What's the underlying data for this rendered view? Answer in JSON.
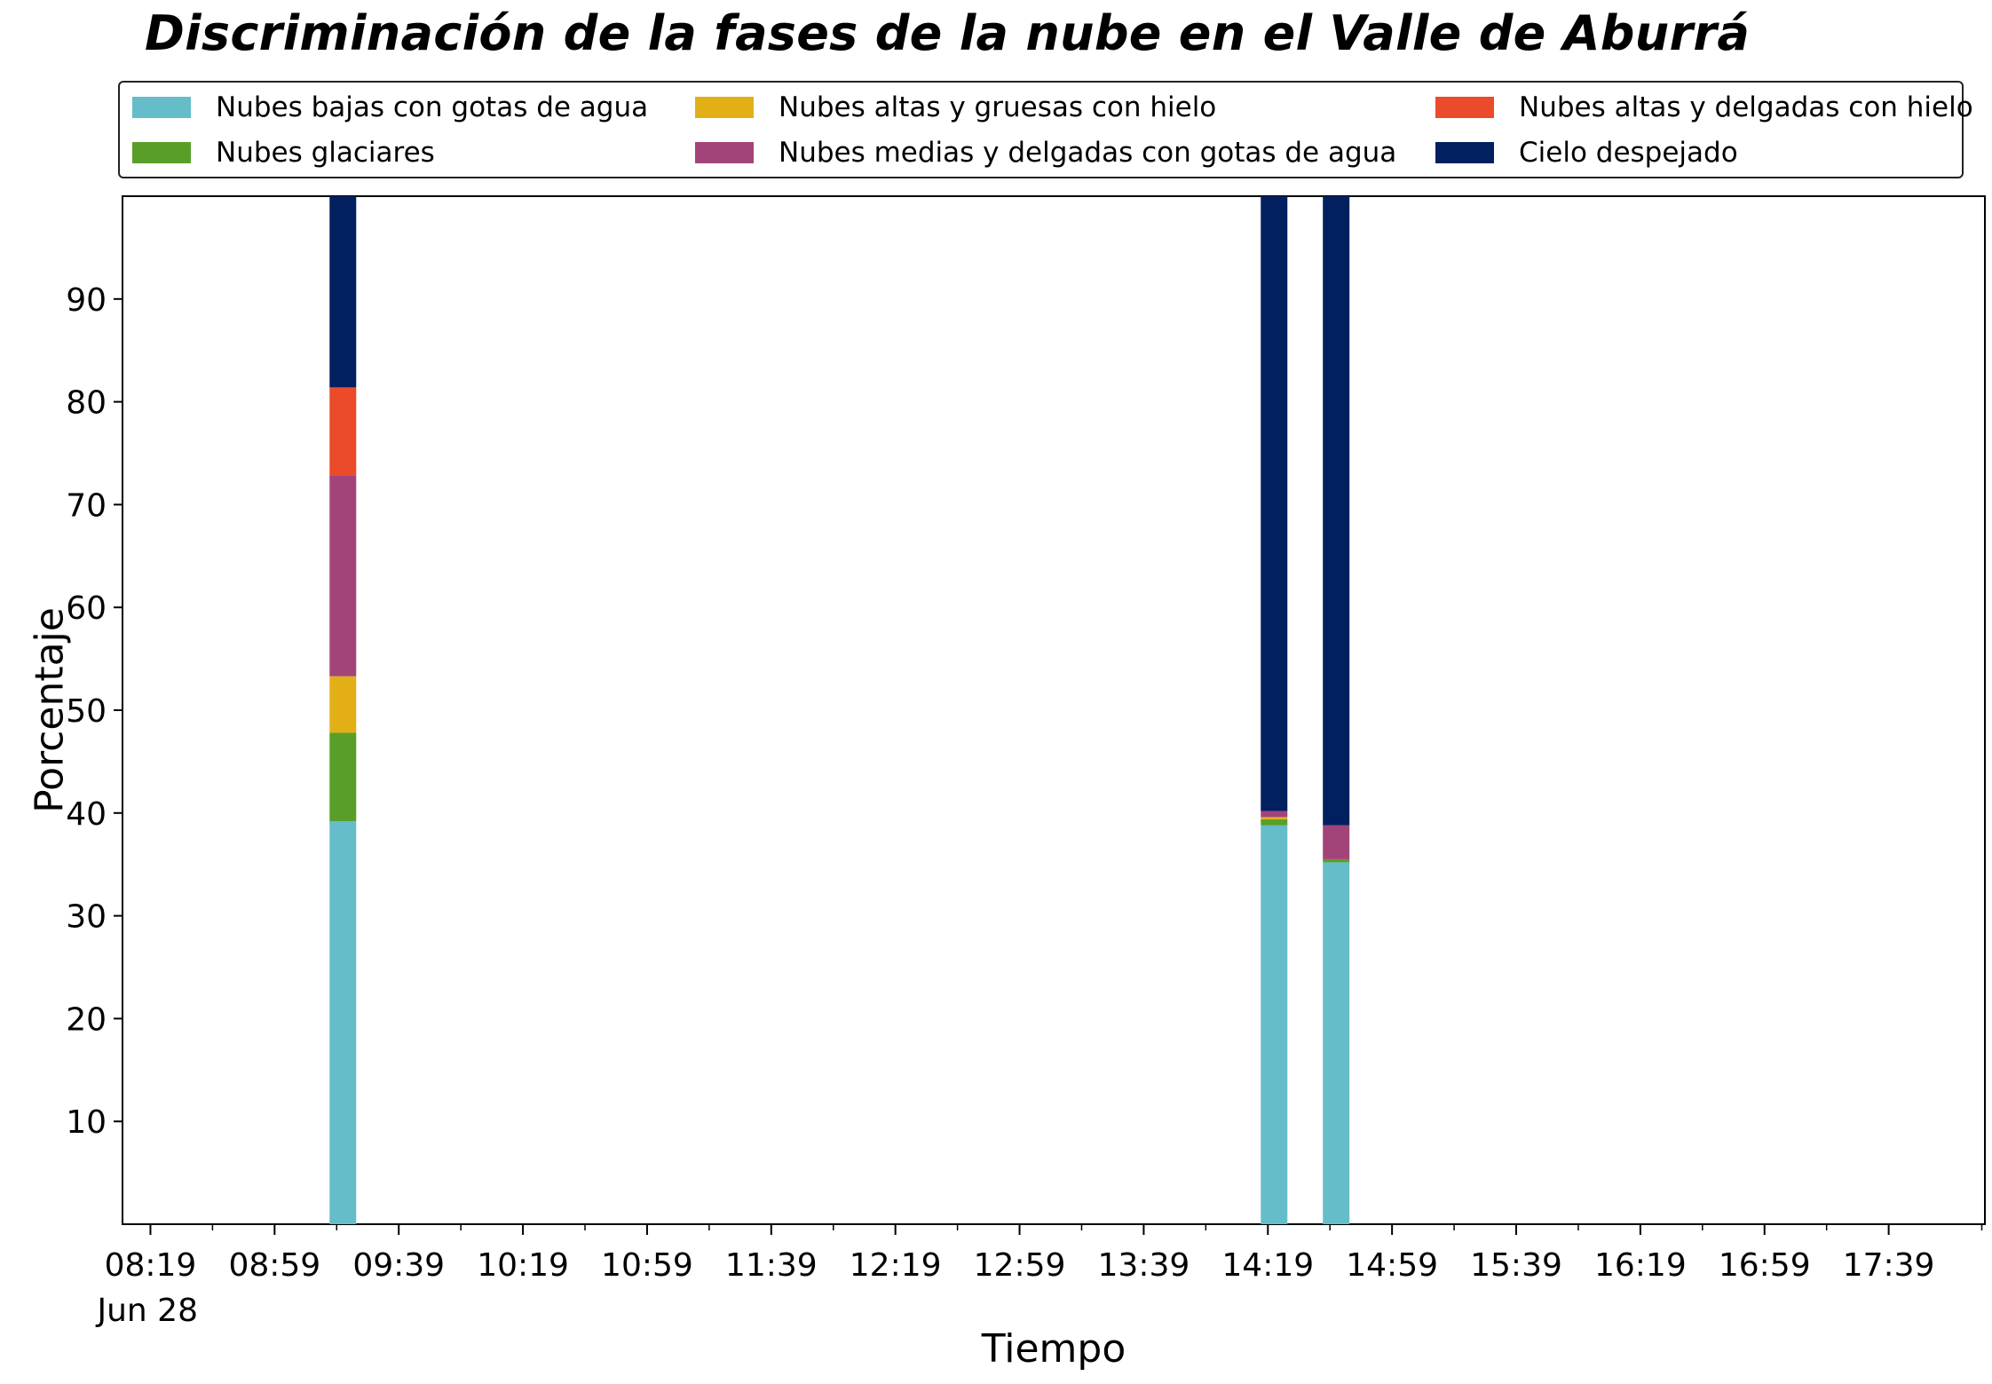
{
  "chart_data": {
    "type": "bar",
    "stacked": true,
    "title": "Discriminación de la fases de la nube en el Valle de Aburrá",
    "xlabel": "Tiempo",
    "ylabel": "Porcentaje",
    "ylim": [
      0,
      100
    ],
    "yticks": [
      10,
      20,
      30,
      40,
      50,
      60,
      70,
      80,
      90
    ],
    "x_range_minutes": [
      490,
      1090
    ],
    "xtick_minutes": [
      499,
      539,
      579,
      619,
      659,
      699,
      739,
      779,
      819,
      859,
      899,
      939,
      979,
      1019,
      1059
    ],
    "xtick_labels": [
      "08:19",
      "08:59",
      "09:39",
      "10:19",
      "10:59",
      "11:39",
      "12:19",
      "12:59",
      "13:39",
      "14:19",
      "14:59",
      "15:39",
      "16:19",
      "16:59",
      "17:39"
    ],
    "x_date_label": "Jun 28",
    "legend_position": "top",
    "grid": false,
    "series": [
      {
        "name": "Nubes bajas con gotas de agua",
        "color": "#65bdc9"
      },
      {
        "name": "Nubes glaciares",
        "color": "#5a9e2a"
      },
      {
        "name": "Nubes altas y gruesas con hielo",
        "color": "#e2b016"
      },
      {
        "name": "Nubes medias y delgadas con gotas de agua",
        "color": "#a2447a"
      },
      {
        "name": "Nubes altas y delgadas con hielo",
        "color": "#eb4a2b"
      },
      {
        "name": "Cielo despejado",
        "color": "#02205f"
      }
    ],
    "bars": [
      {
        "time": "09:21",
        "minutes": 561,
        "values": [
          39.2,
          8.6,
          5.5,
          19.5,
          8.6,
          18.6
        ]
      },
      {
        "time": "14:21",
        "minutes": 861,
        "values": [
          38.8,
          0.6,
          0.2,
          0.6,
          0.0,
          59.8
        ]
      },
      {
        "time": "14:41",
        "minutes": 881,
        "values": [
          35.2,
          0.3,
          0.0,
          3.3,
          0.0,
          61.2
        ]
      }
    ]
  }
}
